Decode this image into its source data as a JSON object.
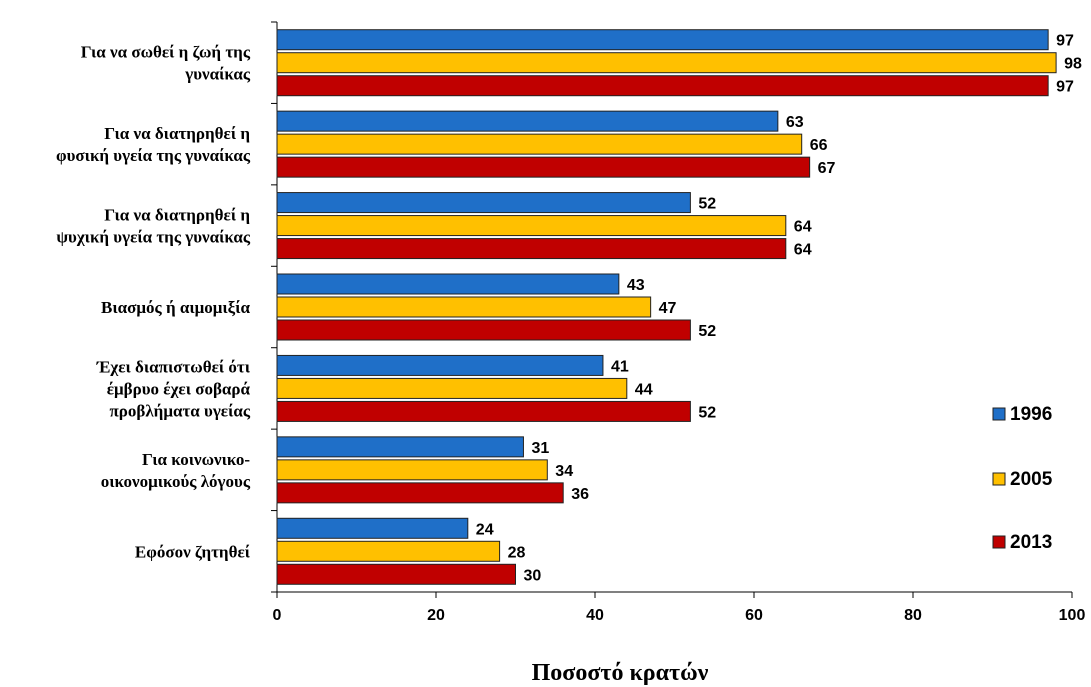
{
  "chart_data": {
    "type": "bar",
    "orientation": "horizontal",
    "x_label": "Ποσοστό κρατών",
    "categories": [
      "Για να σωθεί η ζωή της\nγυναίκας",
      "Για να διατηρηθεί η\nφυσική υγεία της γυναίκας",
      "Για να διατηρηθεί η\nψυχική υγεία της γυναίκας",
      "Βιασμός ή αιμομιξία",
      "Έχει διαπιστωθεί ότι\nέμβρυο έχει σοβαρά\nπροβλήματα υγείας",
      "Για κοινωνικο-\nοικονομικούς λόγους",
      "Εφόσον ζητηθεί"
    ],
    "series": [
      {
        "name": "1996",
        "color": "#1f6fc8",
        "values": [
          97,
          63,
          52,
          43,
          41,
          31,
          24
        ]
      },
      {
        "name": "2005",
        "color": "#ffc000",
        "values": [
          98,
          66,
          64,
          47,
          44,
          34,
          28
        ]
      },
      {
        "name": "2013",
        "color": "#c00000",
        "values": [
          97,
          67,
          64,
          52,
          52,
          36,
          30
        ]
      }
    ],
    "xlim": [
      0,
      100
    ],
    "xticks": [
      0,
      20,
      40,
      60,
      80,
      100
    ],
    "legend": "right"
  }
}
